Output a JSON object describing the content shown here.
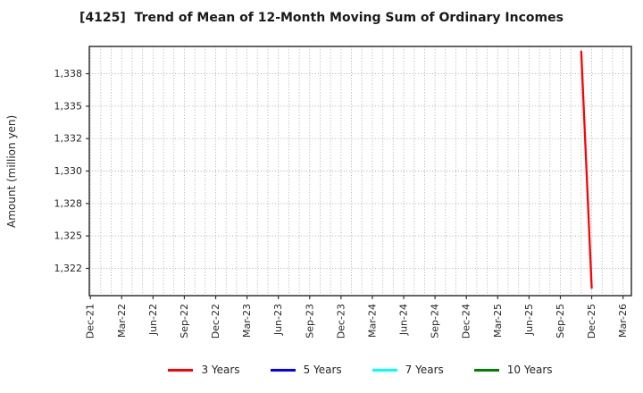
{
  "chart_data": {
    "type": "line",
    "title": "[4125]  Trend of Mean of 12-Month Moving Sum of Ordinary Incomes",
    "ylabel": "Amount (million yen)",
    "xlabel": "",
    "grid": "dotted, gray, monthly vertical lines and horizontal lines at y ticks",
    "legend_position": "bottom-center",
    "x_tick_labels": [
      "Dec-21",
      "Mar-22",
      "Jun-22",
      "Sep-22",
      "Dec-22",
      "Mar-23",
      "Jun-23",
      "Sep-23",
      "Dec-23",
      "Mar-24",
      "Jun-24",
      "Sep-24",
      "Dec-24",
      "Mar-25",
      "Jun-25",
      "Sep-25",
      "Dec-25",
      "Mar-26"
    ],
    "y_ticks": [
      {
        "value": 1337.5,
        "label": "1,338"
      },
      {
        "value": 1335.0,
        "label": "1,335"
      },
      {
        "value": 1332.5,
        "label": "1,332"
      },
      {
        "value": 1330.0,
        "label": "1,330"
      },
      {
        "value": 1327.5,
        "label": "1,328"
      },
      {
        "value": 1325.0,
        "label": "1,325"
      },
      {
        "value": 1322.5,
        "label": "1,322"
      }
    ],
    "ylim": [
      1320.4,
      1339.6
    ],
    "xlim_months": [
      -0.1,
      51.8
    ],
    "x_axis_start": "Dec-21",
    "series": [
      {
        "name": "3 Years",
        "color": "#ff0000",
        "points": [
          {
            "x": "Nov-25",
            "y": 1339.2
          },
          {
            "x": "Dec-25",
            "y": 1321.0
          }
        ]
      },
      {
        "name": "5 Years",
        "color": "#0000ff",
        "points": []
      },
      {
        "name": "7 Years",
        "color": "#00ffff",
        "points": []
      },
      {
        "name": "10 Years",
        "color": "#008000",
        "points": []
      }
    ],
    "colors": {
      "grid": "#a6a6a6",
      "border": "#333333",
      "tick_text": "#262626",
      "title_text": "#1a1a1a"
    }
  }
}
